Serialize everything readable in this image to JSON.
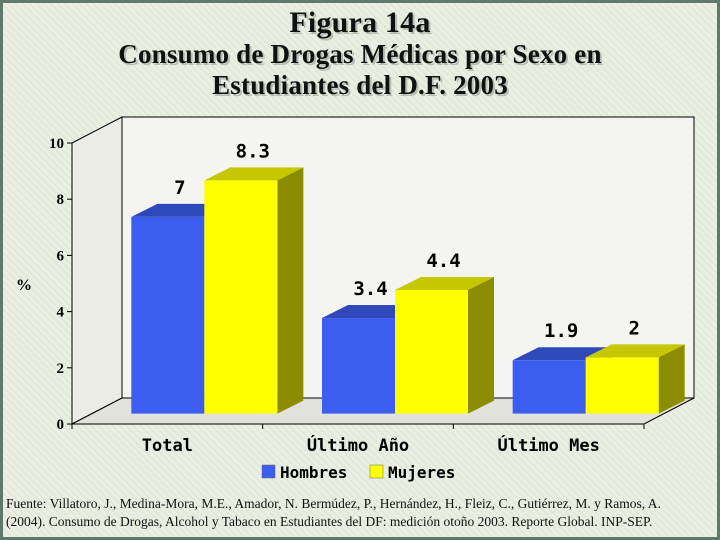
{
  "figure": {
    "title_line1": "Figura 14a",
    "title_line2": "Consumo de Drogas Médicas por Sexo en",
    "title_line3": "Estudiantes del D.F. 2003",
    "source_line1": "Fuente: Villatoro, J., Medina-Mora, M.E., Amador, N. Bermúdez, P., Hernández, H., Fleiz, C., Gutiérrez, M. y Ramos, A.",
    "source_line2": "(2004). Consumo de Drogas, Alcohol y Tabaco en Estudiantes del DF: medición otoño 2003. Reporte Global. INP-SEP."
  },
  "chart_data": {
    "type": "bar",
    "title": "Consumo de Drogas Médicas por Sexo en Estudiantes del D.F. 2003",
    "xlabel": "",
    "ylabel": "%",
    "categories": [
      "Total",
      "Último Año",
      "Último Mes"
    ],
    "series": [
      {
        "name": "Hombres",
        "values": [
          7,
          3.4,
          1.9
        ],
        "labels": [
          "7",
          "3.4",
          "1.9"
        ],
        "color": "#3c5ef0"
      },
      {
        "name": "Mujeres",
        "values": [
          8.3,
          4.4,
          2
        ],
        "labels": [
          "8.3",
          "4.4",
          "2"
        ],
        "color": "#ffff00"
      }
    ],
    "ylim": [
      0,
      10
    ],
    "yticks": [
      "0",
      "2",
      "4",
      "6",
      "8",
      "10"
    ],
    "legend_position": "bottom",
    "grid": false,
    "style": "3d"
  }
}
